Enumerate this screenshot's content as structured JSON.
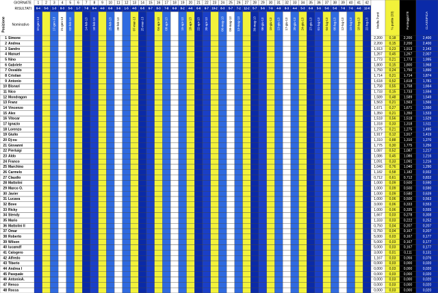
{
  "header": {
    "giornate_label": "GIORNATE",
    "risultati_label": "RISULTATI",
    "nominativo_label": "Nominativo",
    "posizione_label": "Posizione",
    "stats_labels": [
      "Media Punti",
      "% partite (33)",
      "Punteggio/78",
      "CLASSIFICA"
    ]
  },
  "column_palette": [
    "#1a3fc8",
    "#f2f23a",
    "#2f6ae0",
    "#ffffff",
    "#2f6ae0",
    "#f2f23a",
    "#0a2aa8"
  ],
  "giornate": [
    1,
    2,
    3,
    4,
    5,
    6,
    7,
    8,
    9,
    10,
    11,
    12,
    13,
    14,
    15,
    16,
    17,
    18,
    19,
    20,
    21,
    22,
    23,
    24,
    25,
    26,
    27,
    28,
    29,
    30,
    31,
    32,
    33,
    34,
    35,
    36,
    37,
    38,
    39,
    40,
    41,
    42
  ],
  "risultati": [
    "6-4",
    "5-6",
    "1-3",
    "8-3",
    "5-6",
    "1-7",
    "7-8",
    "8-4",
    "4-9",
    "6-9",
    "3-6",
    "1-5",
    "4-5",
    "6-5",
    "6-7",
    "8-3",
    "7-8",
    "6-9",
    "8-2",
    "4-6",
    "6-6",
    "6-7",
    "10-2",
    "8-3",
    "5-7",
    "7-2",
    "12-2",
    "5-7",
    "5-6",
    "7-9",
    "4-9",
    "8-3",
    "4-4",
    "5-3",
    "6-9",
    "5-6",
    "5-6",
    "5-6",
    "7-6",
    "7-6",
    "4-6",
    "12-6"
  ],
  "date": [
    "10-gen-13",
    null,
    "17-gen-13",
    "21-gen-13",
    "02-feb-13",
    null,
    "14-feb-13",
    "18-feb-13",
    null,
    "25-feb-13",
    "28-feb-13",
    null,
    "07-mar-13",
    "25-mar-13",
    null,
    "04-apr-13",
    "08-apr-13",
    null,
    "15-apr-13",
    "18-apr-13",
    "22-apr-13",
    "30-apr-13",
    null,
    "06-mag-13",
    "09-mag-13",
    "13-mag-13",
    null,
    "30-mag-13",
    "06-giu-13",
    "10-giu-13",
    "13-giu-13",
    "17-giu-13",
    "20-giu-13",
    "24-giu-13",
    "27-giu-13",
    "01-lug-13",
    "04-lug-13",
    "08-lug-13",
    "12-lug-13",
    "15-lug-13",
    "18-lug-13",
    "22-lug-13"
  ],
  "rows": [
    [
      1,
      "Simone",
      "2,200",
      "0,18",
      "2,200",
      "2,400"
    ],
    [
      2,
      "Andrea",
      "2,200",
      "0,15",
      "2,200",
      "2,400"
    ],
    [
      3,
      "Sandro",
      "1,913",
      "0,23",
      "1,913",
      "2,143"
    ],
    [
      4,
      "Manuel",
      "1,267",
      "0,45",
      "1,267",
      "2,007"
    ],
    [
      5,
      "Nino",
      "1,773",
      "0,21",
      "1,773",
      "1,995"
    ],
    [
      6,
      "Gabriele",
      "1,800",
      "0,15",
      "1,800",
      "1,968"
    ],
    [
      7,
      "Osvaldo",
      "1,750",
      "0,24",
      "1,750",
      "1,890"
    ],
    [
      8,
      "Cristian",
      "1,714",
      "0,21",
      "1,714",
      "1,874"
    ],
    [
      9,
      "Antonio",
      "1,618",
      "0,52",
      "1,618",
      "1,781"
    ],
    [
      10,
      "Bisnari",
      "1,758",
      "0,55",
      "1,758",
      "1,664"
    ],
    [
      11,
      "Nico",
      "1,733",
      "0,15",
      "1,733",
      "1,594"
    ],
    [
      12,
      "Mondragon",
      "1,589",
      "0,48",
      "1,589",
      "1,549"
    ],
    [
      13,
      "Franz",
      "1,563",
      "0,21",
      "1,563",
      "1,566"
    ],
    [
      14,
      "Vincenzo",
      "1,671",
      "0,27",
      "1,671",
      "1,550"
    ],
    [
      15,
      "Alex",
      "1,350",
      "0,21",
      "1,350",
      "1,533"
    ],
    [
      16,
      "Vitocar",
      "1,518",
      "0,56",
      "1,518",
      "1,529"
    ],
    [
      17,
      "Ignazio",
      "1,318",
      "0,33",
      "1,318",
      "1,511"
    ],
    [
      18,
      "Lorenzo",
      "1,275",
      "0,21",
      "1,275",
      "1,495"
    ],
    [
      19,
      "Giulio",
      "1,917",
      "0,12",
      "1,917",
      "1,419"
    ],
    [
      20,
      "Dj:ou",
      "1,310",
      "0,88",
      "1,310",
      "1,270"
    ],
    [
      21,
      "Giovanni",
      "1,775",
      "0,30",
      "1,775",
      "1,256"
    ],
    [
      22,
      "Pierluigi",
      "1,087",
      "0,52",
      "1,087",
      "1,217"
    ],
    [
      23,
      "Aldo",
      "1,086",
      "0,45",
      "1,086",
      "1,216"
    ],
    [
      24,
      "Franco",
      "1,091",
      "0,33",
      "1,091",
      "1,216"
    ],
    [
      25,
      "Marchino",
      "1,040",
      "0,76",
      "1,040",
      "1,290"
    ],
    [
      26,
      "Carmelo",
      "1,182",
      "0,58",
      "1,182",
      "0,932"
    ],
    [
      27,
      "Claudio",
      "0,712",
      "0,61",
      "0,712",
      "0,832"
    ],
    [
      28,
      "Mattolini",
      "1,000",
      "0,09",
      "0,500",
      "0,590"
    ],
    [
      29,
      "Marco O.",
      "1,000",
      "0,09",
      "0,500",
      "0,590"
    ],
    [
      30,
      "Javier",
      "1,000",
      "0,09",
      "0,580",
      "0,639"
    ],
    [
      31,
      "Lucava",
      "1,000",
      "0,06",
      "0,500",
      "0,563"
    ],
    [
      32,
      "Bove",
      "3,000",
      "0,06",
      "0,333",
      "0,553"
    ],
    [
      33,
      "Ricky",
      "1,000",
      "0,06",
      "0,335",
      "0,555"
    ],
    [
      34,
      "Stendy",
      "1,667",
      "0,03",
      "0,278",
      "0,308"
    ],
    [
      35,
      "Mario",
      "1,333",
      "0,03",
      "0,222",
      "0,252"
    ],
    [
      36,
      "Mattolini II",
      "0,750",
      "0,04",
      "0,207",
      "0,207"
    ],
    [
      37,
      "Omar",
      "0,750",
      "0,04",
      "0,167",
      "0,207"
    ],
    [
      38,
      "Roberto",
      "5,000",
      "0,03",
      "0,167",
      "0,177"
    ],
    [
      39,
      "Wilson",
      "5,000",
      "0,03",
      "0,167",
      "0,177"
    ],
    [
      40,
      "lucamdf",
      "5,000",
      "0,03",
      "0,167",
      "0,177"
    ],
    [
      41,
      "Calogero",
      "3,000",
      "0,01",
      "0,111",
      "0,131"
    ],
    [
      42,
      "Alfredo",
      "1,167",
      "0,03",
      "0,056",
      "0,076"
    ],
    [
      43,
      "Tiberio",
      "0,000",
      "0,03",
      "0,000",
      "0,020"
    ],
    [
      44,
      "Andrea I",
      "0,000",
      "0,03",
      "0,000",
      "0,020"
    ],
    [
      45,
      "Pasquale",
      "0,000",
      "0,03",
      "0,000",
      "0,020"
    ],
    [
      46,
      "AntonioA.",
      "0,000",
      "0,03",
      "0,000",
      "0,020"
    ],
    [
      47,
      "Renco",
      "0,000",
      "0,03",
      "0,000",
      "0,020"
    ],
    [
      48,
      "Rocca",
      "0,000",
      "0,03",
      "0,000",
      "0,020"
    ]
  ]
}
